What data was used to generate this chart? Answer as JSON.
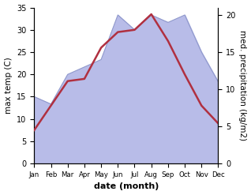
{
  "months": [
    "Jan",
    "Feb",
    "Mar",
    "Apr",
    "May",
    "Jun",
    "Jul",
    "Aug",
    "Sep",
    "Oct",
    "Nov",
    "Dec"
  ],
  "temp": [
    7.5,
    13.0,
    18.5,
    19.0,
    26.0,
    29.5,
    30.0,
    33.5,
    27.5,
    20.0,
    13.0,
    9.0
  ],
  "precip": [
    9,
    8,
    12,
    13,
    14,
    20,
    18,
    20,
    19,
    20,
    15,
    11
  ],
  "temp_color": "#b03040",
  "precip_fill_color": "#b8bce8",
  "precip_line_color": "#9099cc",
  "temp_ylim": [
    0,
    35
  ],
  "precip_ylim": [
    0,
    21
  ],
  "ylabel_left": "max temp (C)",
  "ylabel_right": "med. precipitation (kg/m2)",
  "xlabel": "date (month)",
  "left_ticks": [
    0,
    5,
    10,
    15,
    20,
    25,
    30,
    35
  ],
  "right_ticks": [
    0,
    5,
    10,
    15,
    20
  ]
}
